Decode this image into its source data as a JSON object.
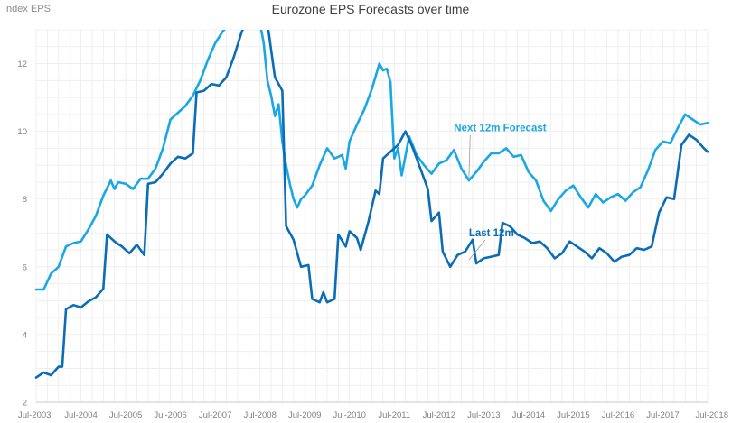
{
  "chart_data": {
    "type": "line",
    "title": "Eurozone EPS Forecasts over time",
    "ylabel": "Index EPS",
    "xlabel": "",
    "xlim": [
      "2003-07",
      "2018-07"
    ],
    "ylim": [
      2,
      13
    ],
    "yticks": [
      2,
      4,
      6,
      8,
      10,
      12
    ],
    "xticks": [
      {
        "label": "Jul-2003",
        "date": "2003-07"
      },
      {
        "label": "Jul-2004",
        "date": "2004-07"
      },
      {
        "label": "Jul-2005",
        "date": "2005-07"
      },
      {
        "label": "Jul-2006",
        "date": "2006-07"
      },
      {
        "label": "Jul-2007",
        "date": "2007-07"
      },
      {
        "label": "Jul-2008",
        "date": "2008-07"
      },
      {
        "label": "Jul-2009",
        "date": "2009-07"
      },
      {
        "label": "Jul-2010",
        "date": "2010-07"
      },
      {
        "label": "Jul-2011",
        "date": "2011-07"
      },
      {
        "label": "Jul-2012",
        "date": "2012-07"
      },
      {
        "label": "Jul-2013",
        "date": "2013-07"
      },
      {
        "label": "Jul-2014",
        "date": "2014-07"
      },
      {
        "label": "Jul-2015",
        "date": "2015-07"
      },
      {
        "label": "Jul-2016",
        "date": "2016-07"
      },
      {
        "label": "Jul-2017",
        "date": "2017-07"
      },
      {
        "label": "Jul-2018",
        "date": "2018-07"
      }
    ],
    "grid": true,
    "colors": {
      "forecast": "#1aa7e6",
      "trailing": "#0b6db5",
      "grid": "#ececec",
      "axis": "#c8c8c8"
    },
    "series": [
      {
        "name": "Next 12m Forecast",
        "color": "#1aa7e6",
        "points": [
          [
            "2003-07",
            5.33
          ],
          [
            "2003-09",
            5.33
          ],
          [
            "2003-11",
            5.8
          ],
          [
            "2004-01",
            6.0
          ],
          [
            "2004-03",
            6.6
          ],
          [
            "2004-05",
            6.7
          ],
          [
            "2004-07",
            6.75
          ],
          [
            "2004-09",
            7.1
          ],
          [
            "2004-11",
            7.5
          ],
          [
            "2005-01",
            8.1
          ],
          [
            "2005-03",
            8.55
          ],
          [
            "2005-04",
            8.3
          ],
          [
            "2005-05",
            8.5
          ],
          [
            "2005-07",
            8.45
          ],
          [
            "2005-09",
            8.3
          ],
          [
            "2005-11",
            8.6
          ],
          [
            "2006-01",
            8.6
          ],
          [
            "2006-03",
            8.9
          ],
          [
            "2006-05",
            9.5
          ],
          [
            "2006-07",
            10.35
          ],
          [
            "2006-09",
            10.55
          ],
          [
            "2006-11",
            10.75
          ],
          [
            "2007-01",
            11.05
          ],
          [
            "2007-03",
            11.5
          ],
          [
            "2007-05",
            12.1
          ],
          [
            "2007-07",
            12.6
          ],
          [
            "2007-09",
            12.95
          ],
          [
            "2007-11",
            13.2
          ],
          [
            "2008-01",
            13.2
          ],
          [
            "2008-03",
            13.2
          ],
          [
            "2008-05",
            13.2
          ],
          [
            "2008-07",
            13.2
          ],
          [
            "2008-08",
            12.6
          ],
          [
            "2008-09",
            11.5
          ],
          [
            "2008-10",
            11.05
          ],
          [
            "2008-11",
            10.45
          ],
          [
            "2008-12",
            10.8
          ],
          [
            "2009-01",
            9.7
          ],
          [
            "2009-02",
            9.0
          ],
          [
            "2009-03",
            8.45
          ],
          [
            "2009-04",
            8.0
          ],
          [
            "2009-05",
            7.75
          ],
          [
            "2009-06",
            8.0
          ],
          [
            "2009-07",
            8.1
          ],
          [
            "2009-09",
            8.4
          ],
          [
            "2009-11",
            9.0
          ],
          [
            "2010-01",
            9.5
          ],
          [
            "2010-03",
            9.2
          ],
          [
            "2010-05",
            9.3
          ],
          [
            "2010-06",
            8.9
          ],
          [
            "2010-07",
            9.7
          ],
          [
            "2010-09",
            10.2
          ],
          [
            "2010-11",
            10.65
          ],
          [
            "2011-01",
            11.25
          ],
          [
            "2011-03",
            12.0
          ],
          [
            "2011-04",
            11.8
          ],
          [
            "2011-05",
            11.85
          ],
          [
            "2011-06",
            11.45
          ],
          [
            "2011-07",
            9.2
          ],
          [
            "2011-08",
            9.5
          ],
          [
            "2011-09",
            8.7
          ],
          [
            "2011-11",
            9.85
          ],
          [
            "2012-01",
            9.3
          ],
          [
            "2012-03",
            9.0
          ],
          [
            "2012-05",
            8.75
          ],
          [
            "2012-07",
            9.05
          ],
          [
            "2012-09",
            9.15
          ],
          [
            "2012-11",
            9.45
          ],
          [
            "2013-01",
            8.9
          ],
          [
            "2013-03",
            8.55
          ],
          [
            "2013-05",
            8.8
          ],
          [
            "2013-07",
            9.1
          ],
          [
            "2013-09",
            9.35
          ],
          [
            "2013-11",
            9.35
          ],
          [
            "2014-01",
            9.5
          ],
          [
            "2014-03",
            9.25
          ],
          [
            "2014-05",
            9.3
          ],
          [
            "2014-07",
            8.8
          ],
          [
            "2014-09",
            8.55
          ],
          [
            "2014-11",
            7.95
          ],
          [
            "2015-01",
            7.65
          ],
          [
            "2015-03",
            8.0
          ],
          [
            "2015-05",
            8.25
          ],
          [
            "2015-07",
            8.4
          ],
          [
            "2015-09",
            8.05
          ],
          [
            "2015-11",
            7.75
          ],
          [
            "2016-01",
            8.15
          ],
          [
            "2016-03",
            7.9
          ],
          [
            "2016-05",
            8.05
          ],
          [
            "2016-07",
            8.15
          ],
          [
            "2016-09",
            7.95
          ],
          [
            "2016-11",
            8.2
          ],
          [
            "2017-01",
            8.35
          ],
          [
            "2017-03",
            8.85
          ],
          [
            "2017-05",
            9.45
          ],
          [
            "2017-07",
            9.7
          ],
          [
            "2017-09",
            9.65
          ],
          [
            "2017-11",
            10.1
          ],
          [
            "2018-01",
            10.5
          ],
          [
            "2018-03",
            10.35
          ],
          [
            "2018-05",
            10.2
          ],
          [
            "2018-07",
            10.25
          ]
        ]
      },
      {
        "name": "Last 12m",
        "color": "#0b6db5",
        "points": [
          [
            "2003-07",
            2.73
          ],
          [
            "2003-09",
            2.88
          ],
          [
            "2003-11",
            2.8
          ],
          [
            "2004-01",
            3.05
          ],
          [
            "2004-02",
            3.05
          ],
          [
            "2004-03",
            4.75
          ],
          [
            "2004-05",
            4.87
          ],
          [
            "2004-07",
            4.8
          ],
          [
            "2004-09",
            4.98
          ],
          [
            "2004-11",
            5.1
          ],
          [
            "2005-01",
            5.35
          ],
          [
            "2005-02",
            6.95
          ],
          [
            "2005-04",
            6.75
          ],
          [
            "2005-06",
            6.6
          ],
          [
            "2005-08",
            6.4
          ],
          [
            "2005-10",
            6.65
          ],
          [
            "2005-12",
            6.35
          ],
          [
            "2006-01",
            8.45
          ],
          [
            "2006-03",
            8.5
          ],
          [
            "2006-05",
            8.75
          ],
          [
            "2006-07",
            9.05
          ],
          [
            "2006-09",
            9.25
          ],
          [
            "2006-11",
            9.2
          ],
          [
            "2007-01",
            9.35
          ],
          [
            "2007-02",
            11.15
          ],
          [
            "2007-04",
            11.2
          ],
          [
            "2007-06",
            11.4
          ],
          [
            "2007-08",
            11.35
          ],
          [
            "2007-10",
            11.6
          ],
          [
            "2007-12",
            12.2
          ],
          [
            "2008-02",
            12.9
          ],
          [
            "2008-03",
            13.2
          ],
          [
            "2008-06",
            13.2
          ],
          [
            "2008-09",
            13.2
          ],
          [
            "2008-11",
            11.6
          ],
          [
            "2009-01",
            11.2
          ],
          [
            "2009-02",
            7.2
          ],
          [
            "2009-04",
            6.8
          ],
          [
            "2009-06",
            6.0
          ],
          [
            "2009-08",
            6.05
          ],
          [
            "2009-09",
            5.05
          ],
          [
            "2009-11",
            4.95
          ],
          [
            "2009-12",
            5.25
          ],
          [
            "2010-01",
            4.95
          ],
          [
            "2010-03",
            5.05
          ],
          [
            "2010-04",
            6.95
          ],
          [
            "2010-06",
            6.6
          ],
          [
            "2010-07",
            7.05
          ],
          [
            "2010-09",
            6.85
          ],
          [
            "2010-10",
            6.5
          ],
          [
            "2010-12",
            7.3
          ],
          [
            "2011-02",
            8.25
          ],
          [
            "2011-03",
            8.15
          ],
          [
            "2011-04",
            9.2
          ],
          [
            "2011-06",
            9.4
          ],
          [
            "2011-08",
            9.6
          ],
          [
            "2011-10",
            10.0
          ],
          [
            "2011-12",
            9.5
          ],
          [
            "2012-02",
            8.9
          ],
          [
            "2012-04",
            8.3
          ],
          [
            "2012-05",
            7.35
          ],
          [
            "2012-07",
            7.6
          ],
          [
            "2012-08",
            6.45
          ],
          [
            "2012-10",
            6.0
          ],
          [
            "2012-12",
            6.35
          ],
          [
            "2013-02",
            6.45
          ],
          [
            "2013-04",
            6.8
          ],
          [
            "2013-05",
            6.1
          ],
          [
            "2013-07",
            6.25
          ],
          [
            "2013-09",
            6.3
          ],
          [
            "2013-11",
            6.35
          ],
          [
            "2013-12",
            7.3
          ],
          [
            "2014-02",
            7.2
          ],
          [
            "2014-04",
            6.95
          ],
          [
            "2014-06",
            6.85
          ],
          [
            "2014-08",
            6.7
          ],
          [
            "2014-10",
            6.75
          ],
          [
            "2014-12",
            6.55
          ],
          [
            "2015-02",
            6.25
          ],
          [
            "2015-04",
            6.4
          ],
          [
            "2015-06",
            6.75
          ],
          [
            "2015-08",
            6.6
          ],
          [
            "2015-10",
            6.45
          ],
          [
            "2015-12",
            6.25
          ],
          [
            "2016-02",
            6.55
          ],
          [
            "2016-04",
            6.4
          ],
          [
            "2016-06",
            6.15
          ],
          [
            "2016-08",
            6.3
          ],
          [
            "2016-10",
            6.35
          ],
          [
            "2016-12",
            6.55
          ],
          [
            "2017-02",
            6.5
          ],
          [
            "2017-04",
            6.6
          ],
          [
            "2017-06",
            7.6
          ],
          [
            "2017-08",
            8.05
          ],
          [
            "2017-10",
            8.0
          ],
          [
            "2017-12",
            9.6
          ],
          [
            "2018-02",
            9.9
          ],
          [
            "2018-04",
            9.75
          ],
          [
            "2018-06",
            9.5
          ],
          [
            "2018-07",
            9.4
          ]
        ]
      }
    ],
    "annotations": [
      {
        "text": "Next 12m Forecast",
        "series": "Next 12m Forecast",
        "date": "2013-03",
        "value": 8.55,
        "label_date": "2012-11",
        "label_value": 10.0
      },
      {
        "text": "Last 12m",
        "series": "Last 12m",
        "date": "2013-03",
        "value": 6.2,
        "label_date": "2013-03",
        "label_value": 6.9
      }
    ]
  }
}
